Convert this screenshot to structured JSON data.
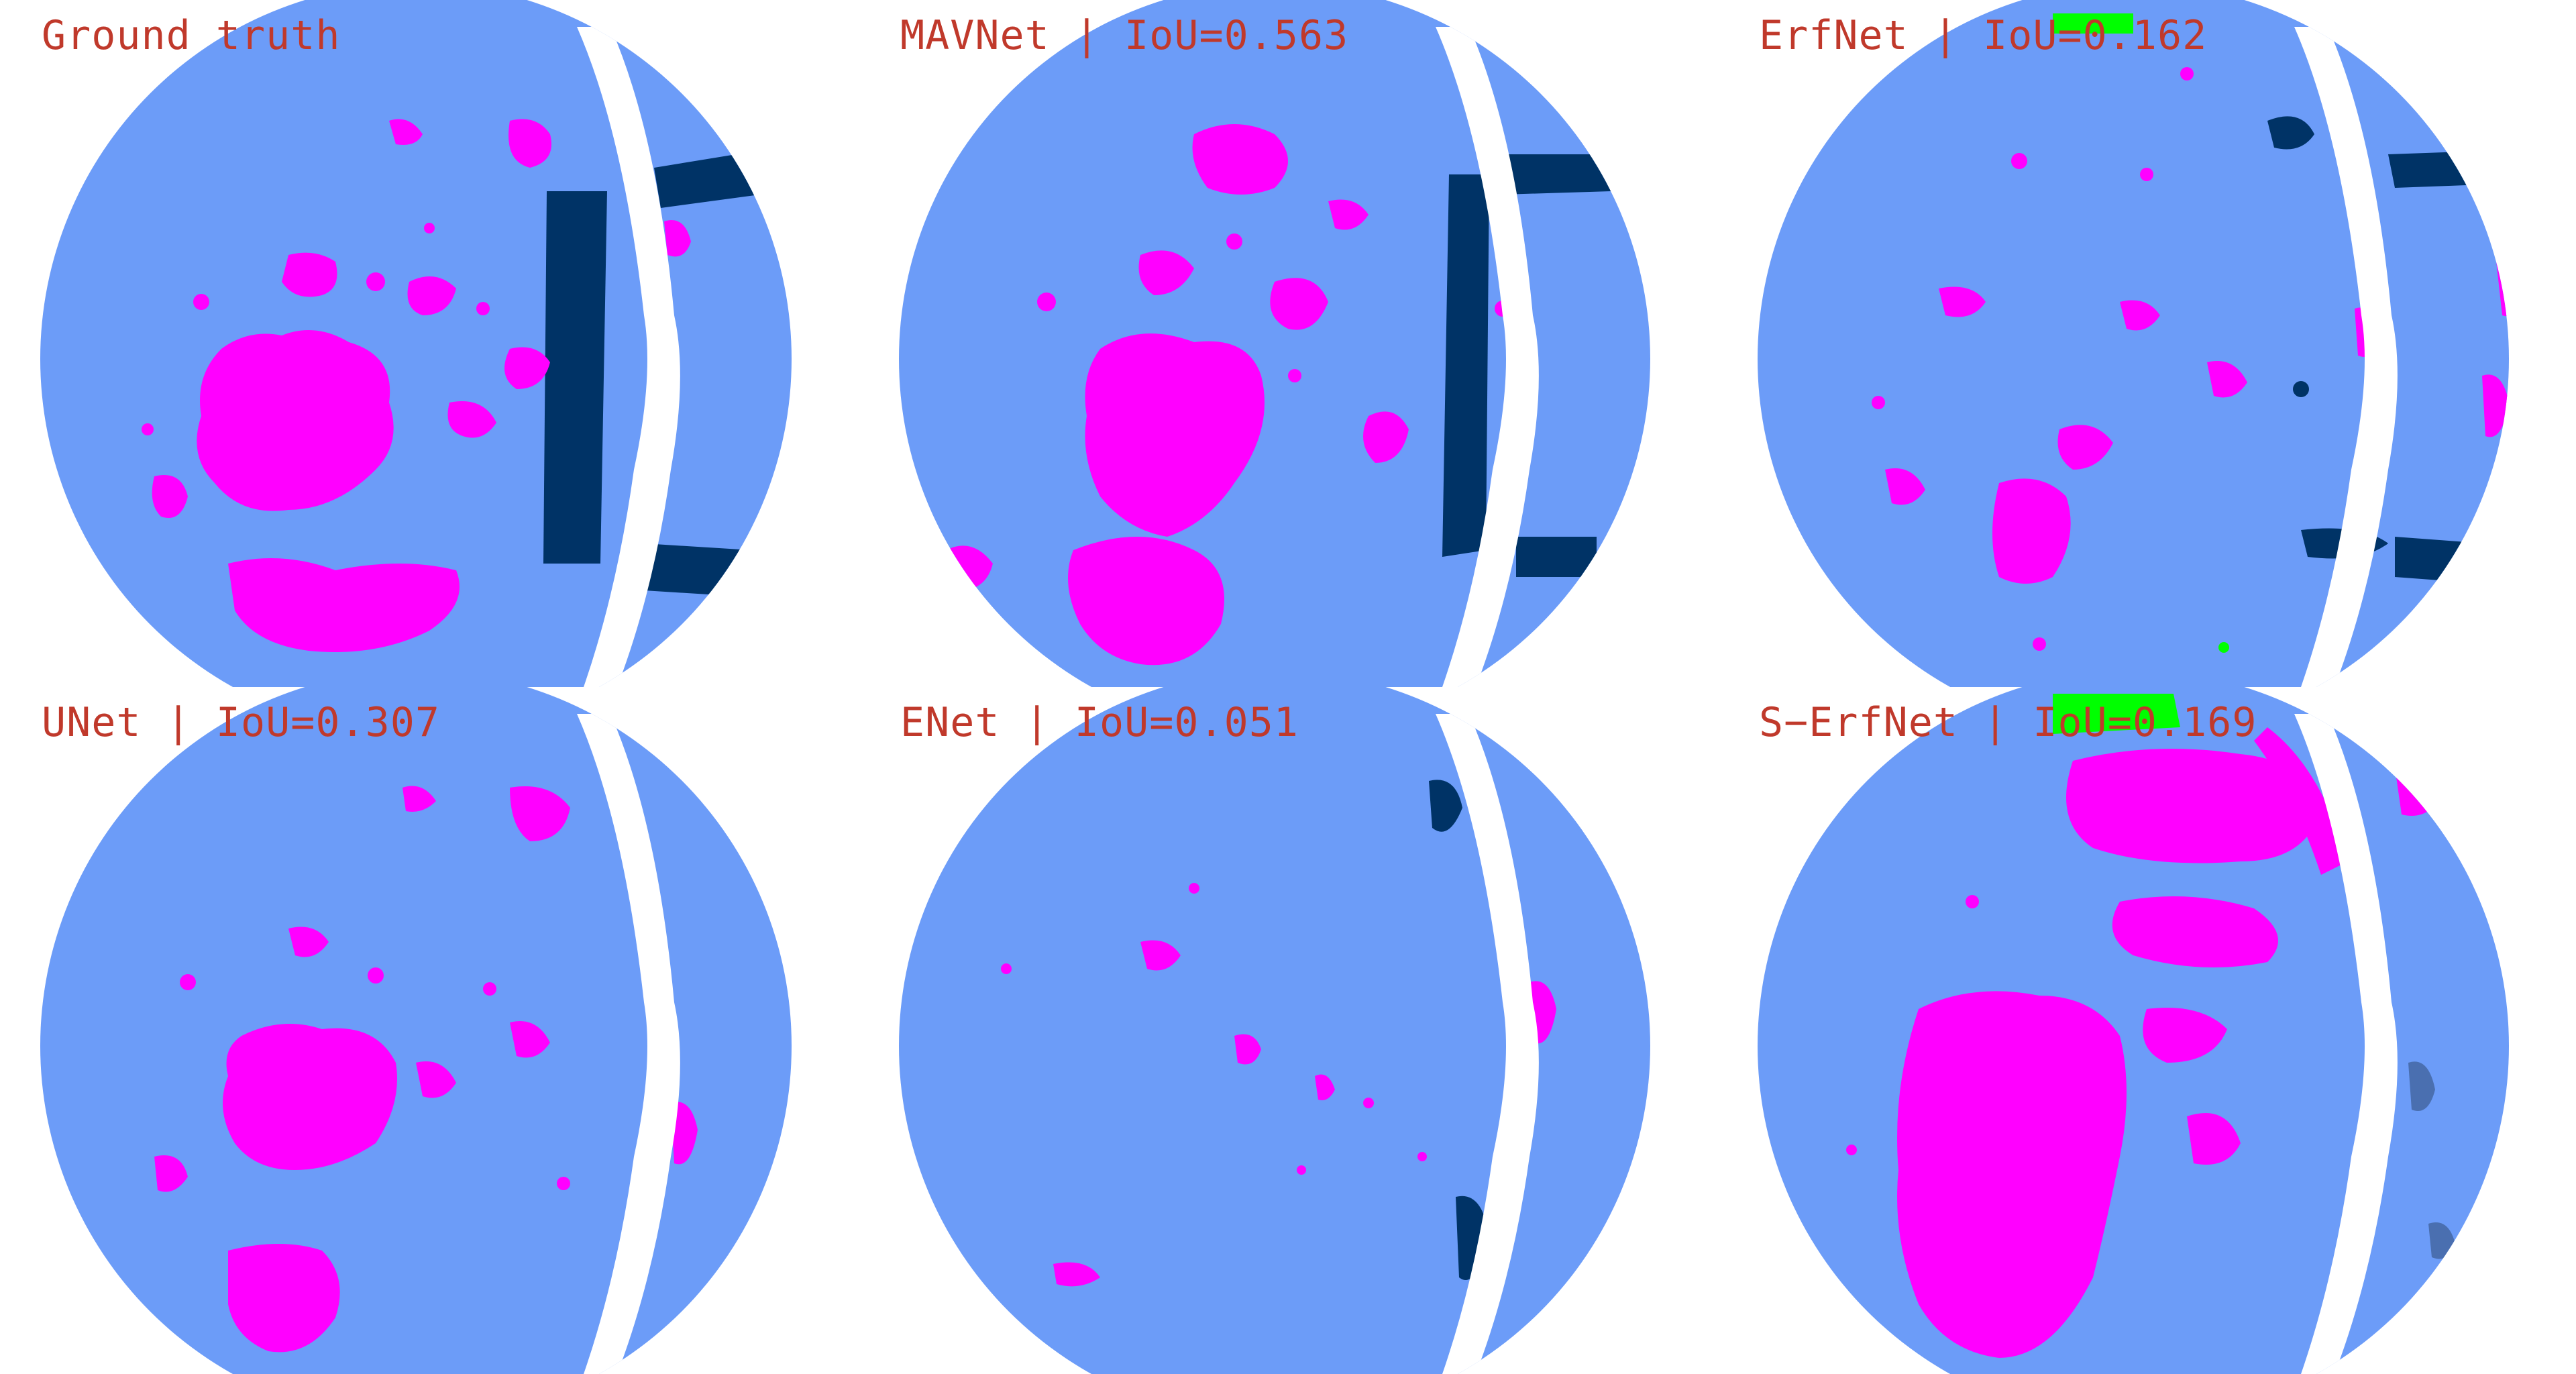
{
  "colors": {
    "background": "#ffffff",
    "disk": "#6c9cf8",
    "magenta_class": "#ff00ff",
    "dark_class": "#003366",
    "green_class": "#00ff00",
    "title_text": "#c0392b"
  },
  "panels": [
    {
      "title": "Ground truth"
    },
    {
      "title": "MAVNet | IoU=0.563"
    },
    {
      "title": "ErfNet | IoU=0.162"
    },
    {
      "title": "UNet | IoU=0.307"
    },
    {
      "title": "ENet | IoU=0.051"
    },
    {
      "title": "S−ErfNet | IoU=0.169"
    }
  ]
}
